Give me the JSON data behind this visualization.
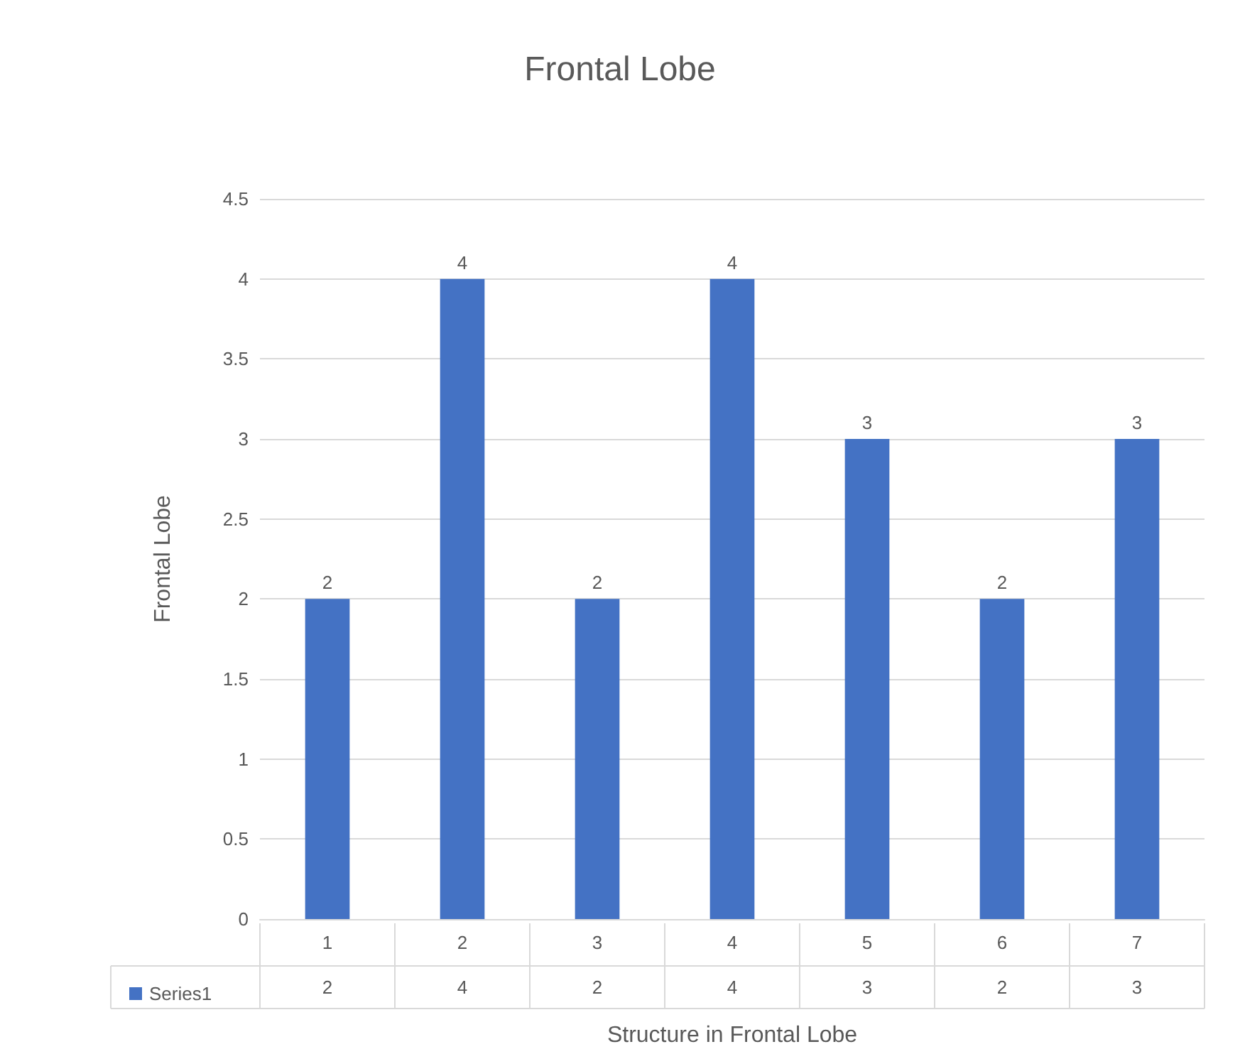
{
  "chart_data": {
    "type": "bar",
    "title": "Frontal Lobe",
    "xlabel": "Structure in Frontal Lobe",
    "ylabel": "Frontal Lobe",
    "categories": [
      "1",
      "2",
      "3",
      "4",
      "5",
      "6",
      "7"
    ],
    "series": [
      {
        "name": "Series1",
        "color": "#4472c4",
        "values": [
          2,
          4,
          2,
          4,
          3,
          2,
          3
        ]
      }
    ],
    "ylim": [
      0,
      4.5
    ],
    "yticks": [
      0,
      0.5,
      1,
      1.5,
      2,
      2.5,
      3,
      3.5,
      4,
      4.5
    ],
    "grid": "y",
    "data_labels": true,
    "legend": "bottom left"
  }
}
